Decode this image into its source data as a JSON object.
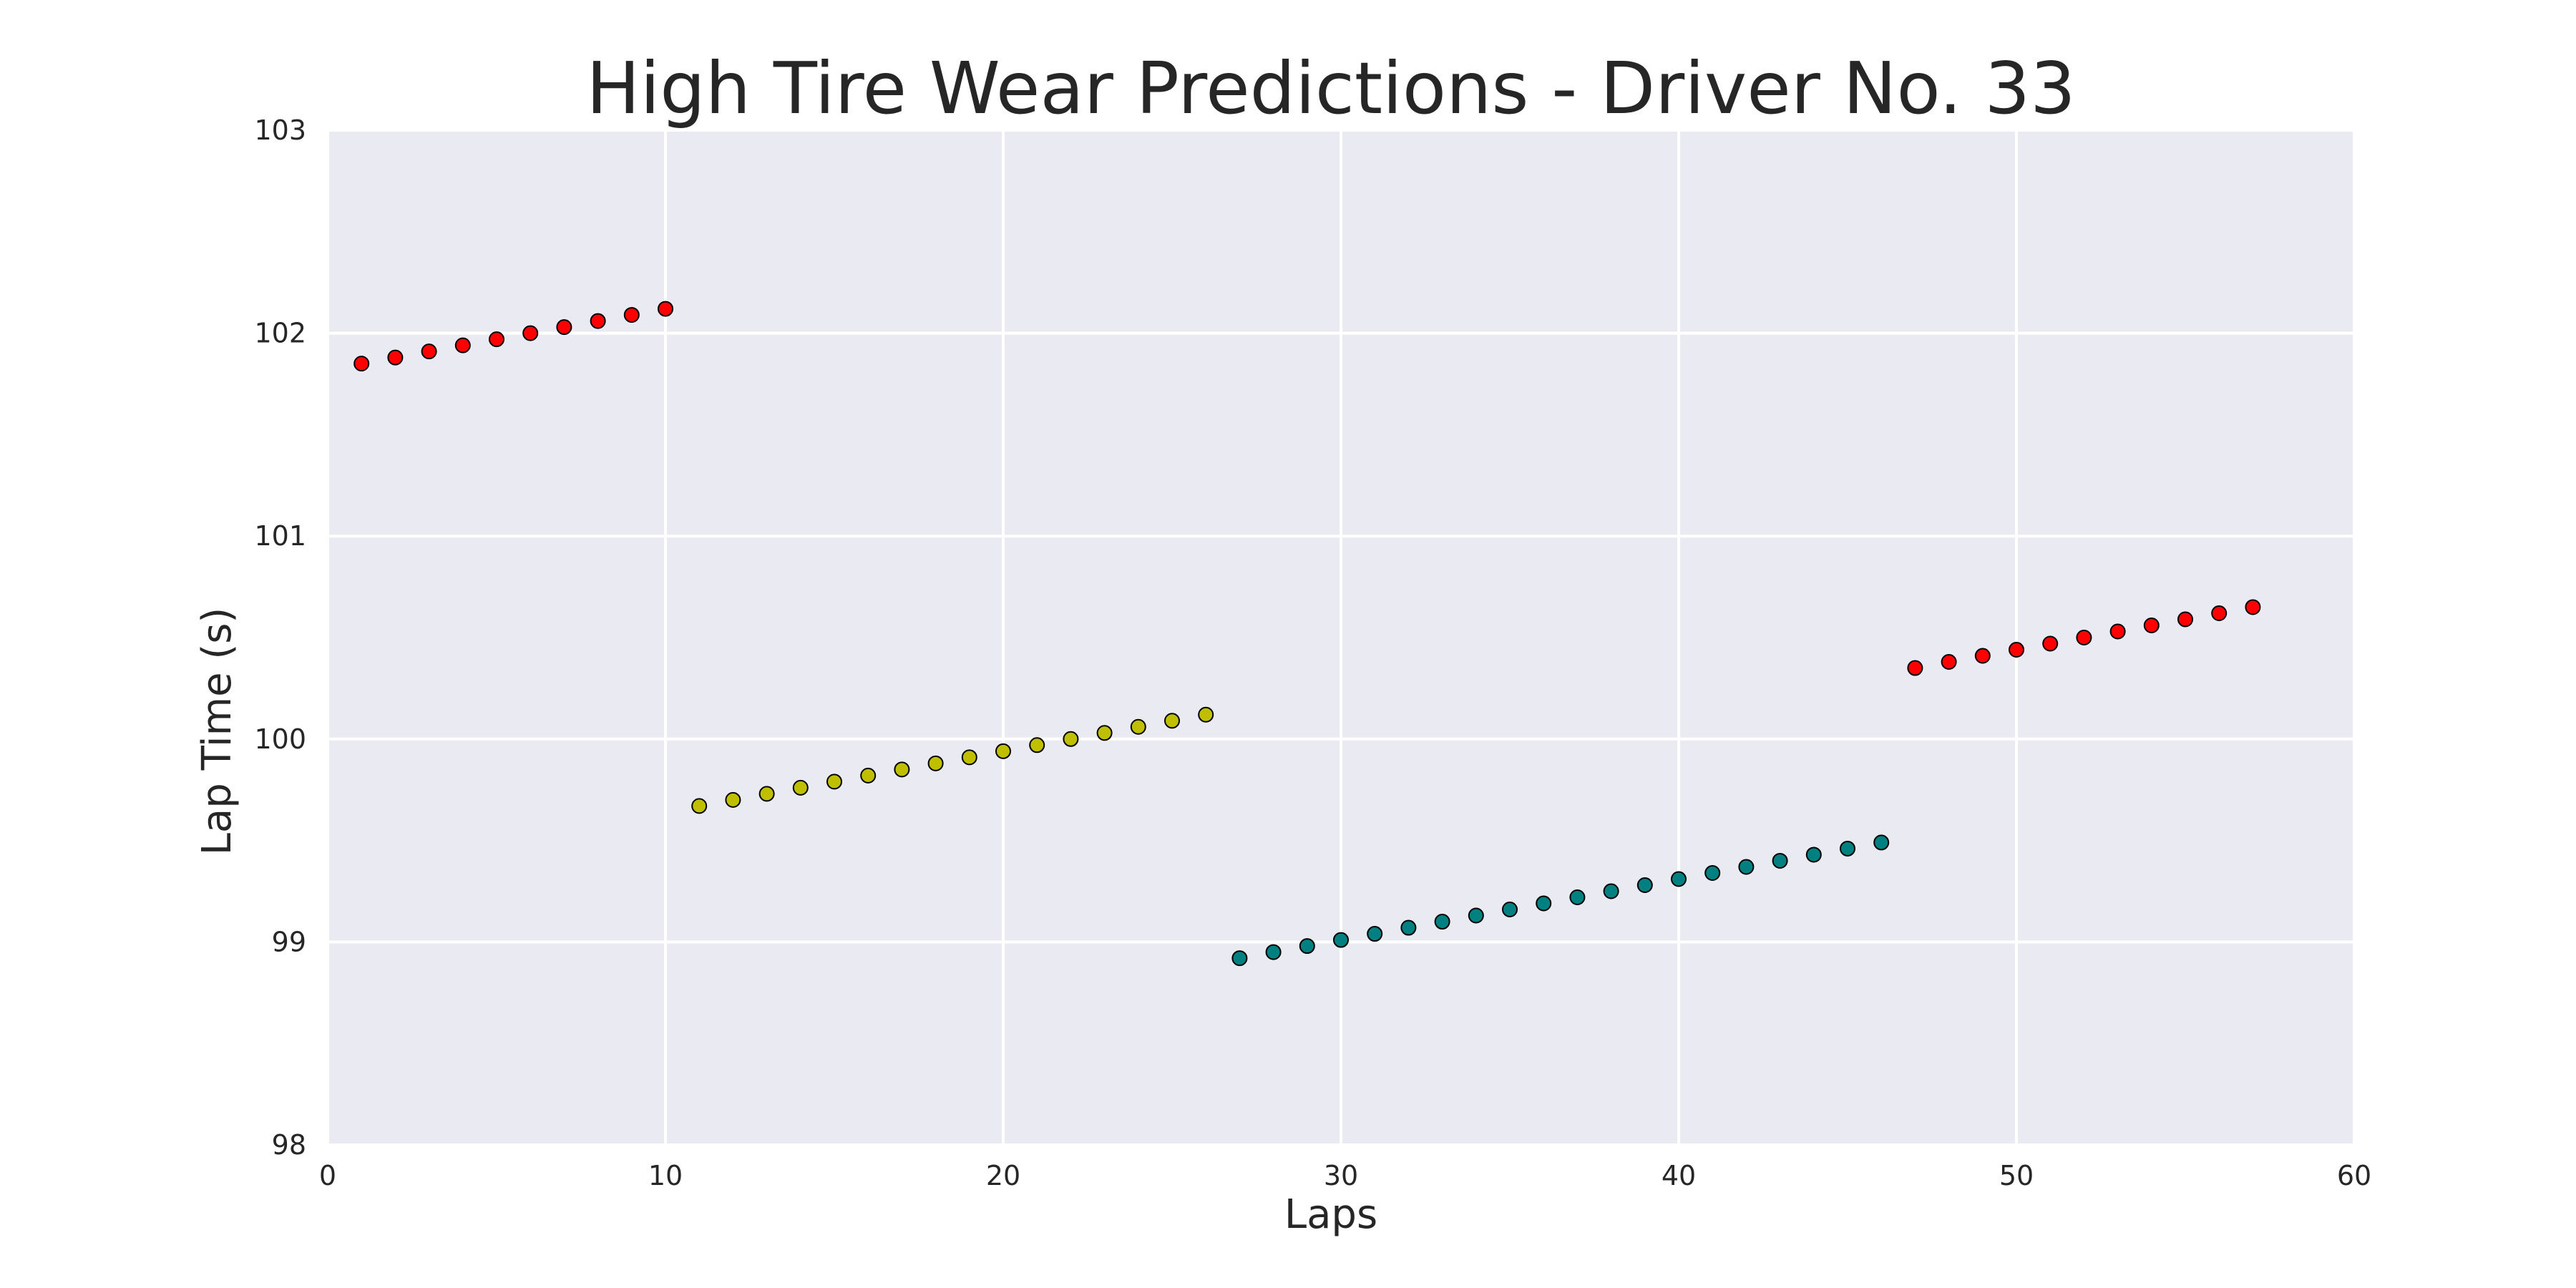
{
  "chart_data": {
    "type": "scatter",
    "title": "High Tire Wear Predictions - Driver No. 33",
    "xlabel": "Laps",
    "ylabel": "Lap Time (s)",
    "xlim": [
      0,
      60
    ],
    "ylim": [
      98,
      103
    ],
    "xticks": [
      0,
      10,
      20,
      30,
      40,
      50,
      60
    ],
    "yticks": [
      98,
      99,
      100,
      101,
      102,
      103
    ],
    "grid": true,
    "background": "#EAEAF2",
    "series": [
      {
        "color": "#FF0000",
        "x": [
          1,
          2,
          3,
          4,
          5,
          6,
          7,
          8,
          9,
          10
        ],
        "y": [
          101.85,
          101.88,
          101.91,
          101.94,
          101.97,
          102.0,
          102.03,
          102.06,
          102.09,
          102.12
        ]
      },
      {
        "color": "#BFBF00",
        "x": [
          11,
          12,
          13,
          14,
          15,
          16,
          17,
          18,
          19,
          20,
          21,
          22,
          23,
          24,
          25,
          26
        ],
        "y": [
          99.67,
          99.7,
          99.73,
          99.76,
          99.79,
          99.82,
          99.85,
          99.88,
          99.91,
          99.94,
          99.97,
          100.0,
          100.03,
          100.06,
          100.09,
          100.12
        ]
      },
      {
        "color": "#008080",
        "x": [
          27,
          28,
          29,
          30,
          31,
          32,
          33,
          34,
          35,
          36,
          37,
          38,
          39,
          40,
          41,
          42,
          43,
          44,
          45,
          46
        ],
        "y": [
          98.92,
          98.95,
          98.98,
          99.01,
          99.04,
          99.07,
          99.1,
          99.13,
          99.16,
          99.19,
          99.22,
          99.25,
          99.28,
          99.31,
          99.34,
          99.37,
          99.4,
          99.43,
          99.46,
          99.49
        ]
      },
      {
        "color": "#FF0000",
        "x": [
          47,
          48,
          49,
          50,
          51,
          52,
          53,
          54,
          55,
          56,
          57
        ],
        "y": [
          100.35,
          100.38,
          100.41,
          100.44,
          100.47,
          100.5,
          100.53,
          100.56,
          100.59,
          100.62,
          100.65
        ]
      }
    ]
  }
}
